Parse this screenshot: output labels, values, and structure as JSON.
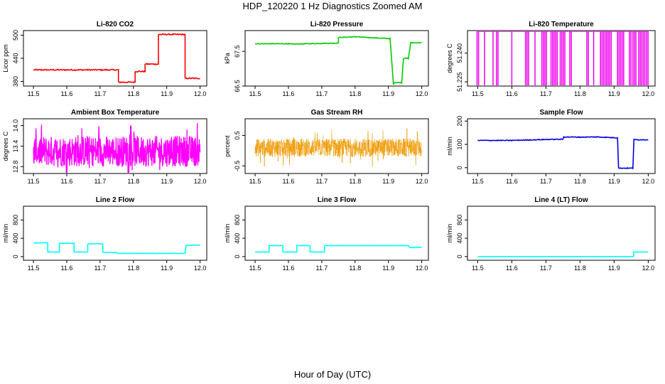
{
  "title": "HDP_120220  1 Hz Diagnostics Zoomed AM",
  "xlabel": "Hour of Day (UTC)",
  "chart_data": [
    {
      "type": "line",
      "title": "Li-820 CO2",
      "ylabel": "Licor ppm",
      "color": "#ff0000",
      "xlim": [
        11.47,
        12.02
      ],
      "ylim": [
        368,
        512
      ],
      "xticks": [
        "11.5",
        "11.6",
        "11.7",
        "11.8",
        "11.9",
        "12.0"
      ],
      "yticks": [
        "380",
        "440",
        "500"
      ],
      "noise": 1.5,
      "style": "line",
      "points": [
        [
          11.5,
          410
        ],
        [
          11.755,
          410
        ],
        [
          11.755,
          378
        ],
        [
          11.805,
          378
        ],
        [
          11.805,
          406
        ],
        [
          11.835,
          406
        ],
        [
          11.835,
          425
        ],
        [
          11.875,
          425
        ],
        [
          11.875,
          502
        ],
        [
          11.955,
          502
        ],
        [
          11.955,
          388
        ],
        [
          12.0,
          388
        ]
      ]
    },
    {
      "type": "line",
      "title": "Li-820 Pressure",
      "ylabel": "kPa",
      "color": "#00cc00",
      "xlim": [
        11.47,
        12.02
      ],
      "ylim": [
        66.5,
        68.1
      ],
      "xticks": [
        "11.5",
        "11.6",
        "11.7",
        "11.8",
        "11.9",
        "12.0"
      ],
      "yticks": [
        "66.5",
        "67.5"
      ],
      "noise": 0.01,
      "style": "line",
      "points": [
        [
          11.5,
          67.72
        ],
        [
          11.6,
          67.72
        ],
        [
          11.61,
          67.71
        ],
        [
          11.7,
          67.73
        ],
        [
          11.75,
          67.74
        ],
        [
          11.75,
          67.9
        ],
        [
          11.8,
          67.92
        ],
        [
          11.8,
          67.92
        ],
        [
          11.9,
          67.87
        ],
        [
          11.905,
          67.87
        ],
        [
          11.915,
          66.55
        ],
        [
          11.918,
          66.6
        ],
        [
          11.94,
          66.6
        ],
        [
          11.945,
          67.3
        ],
        [
          11.96,
          67.3
        ],
        [
          11.967,
          67.75
        ],
        [
          12.0,
          67.75
        ]
      ]
    },
    {
      "type": "bars",
      "title": "Li-820 Temperature",
      "ylabel": "degrees C",
      "color": "#ee00ee",
      "xlim": [
        11.47,
        12.02
      ],
      "ylim": [
        51.2228,
        51.2518
      ],
      "xticks": [
        "11.5",
        "11.6",
        "11.7",
        "11.8",
        "11.9",
        "12.0"
      ],
      "yticks": [
        "51.225",
        "51.240"
      ],
      "base": 51.2228,
      "top": 51.2518,
      "full_spans": [
        [
          11.498,
          11.503
        ],
        [
          11.52,
          11.522
        ],
        [
          11.545,
          11.548
        ],
        [
          11.555,
          11.562
        ],
        [
          11.6,
          11.604
        ],
        [
          11.64,
          11.652
        ],
        [
          11.668,
          11.672
        ],
        [
          11.688,
          11.705
        ],
        [
          11.715,
          11.735
        ],
        [
          11.742,
          11.758
        ],
        [
          11.77,
          11.776
        ],
        [
          11.82,
          11.826
        ],
        [
          11.84,
          11.842
        ],
        [
          11.86,
          11.895
        ],
        [
          11.91,
          11.93
        ],
        [
          11.945,
          11.95
        ],
        [
          11.955,
          11.965
        ],
        [
          11.972,
          11.99
        ],
        [
          11.995,
          12.0
        ]
      ],
      "step": 0.0045
    },
    {
      "type": "line",
      "title": "Ambient Box Temperature",
      "ylabel": "degrees C",
      "color": "#ff00ff",
      "xlim": [
        11.47,
        12.02
      ],
      "ylim": [
        12.6,
        14.2
      ],
      "xticks": [
        "11.5",
        "11.6",
        "11.7",
        "11.8",
        "11.9",
        "12.0"
      ],
      "yticks": [
        "12.8",
        "13.4",
        "14.0"
      ],
      "style": "random",
      "center": 13.25,
      "amp": 0.45,
      "spike": 0.85,
      "n": 600
    },
    {
      "type": "scatter",
      "title": "Gas Stream RH",
      "ylabel": "percent",
      "color": "#ee9900",
      "xlim": [
        11.47,
        12.02
      ],
      "ylim": [
        -0.75,
        1.05
      ],
      "xticks": [
        "11.5",
        "11.6",
        "11.7",
        "11.8",
        "11.9",
        "12.0"
      ],
      "yticks": [
        "-0.5",
        "0.5"
      ],
      "style": "random",
      "center": 0.1,
      "amp": 0.3,
      "spike": 0.65,
      "n": 900
    },
    {
      "type": "line",
      "title": "Sample Flow",
      "ylabel": "ml/min",
      "color": "#0000dd",
      "xlim": [
        11.47,
        12.02
      ],
      "ylim": [
        -25,
        210
      ],
      "xticks": [
        "11.5",
        "11.6",
        "11.7",
        "11.8",
        "11.9",
        "12.0"
      ],
      "yticks": [
        "0",
        "100",
        "200"
      ],
      "noise": 1.5,
      "style": "line",
      "points": [
        [
          11.5,
          117
        ],
        [
          11.6,
          117
        ],
        [
          11.65,
          119
        ],
        [
          11.7,
          121
        ],
        [
          11.75,
          122
        ],
        [
          11.752,
          132
        ],
        [
          11.8,
          131
        ],
        [
          11.85,
          132
        ],
        [
          11.91,
          128
        ],
        [
          11.913,
          -2
        ],
        [
          11.955,
          -2
        ],
        [
          11.958,
          120
        ],
        [
          12.0,
          120
        ]
      ]
    },
    {
      "type": "line",
      "title": "Line 2 Flow",
      "ylabel": "ml/min",
      "color": "#00ffff",
      "xlim": [
        11.47,
        12.02
      ],
      "ylim": [
        -80,
        1100
      ],
      "xticks": [
        "11.5",
        "11.6",
        "11.7",
        "11.8",
        "11.9",
        "12.0"
      ],
      "yticks": [
        "0",
        "400",
        "800"
      ],
      "noise": 3,
      "style": "line",
      "points": [
        [
          11.5,
          300
        ],
        [
          11.543,
          300
        ],
        [
          11.543,
          100
        ],
        [
          11.578,
          100
        ],
        [
          11.578,
          290
        ],
        [
          11.622,
          290
        ],
        [
          11.622,
          100
        ],
        [
          11.663,
          100
        ],
        [
          11.663,
          280
        ],
        [
          11.708,
          280
        ],
        [
          11.708,
          90
        ],
        [
          11.75,
          90
        ],
        [
          11.75,
          70
        ],
        [
          11.955,
          70
        ],
        [
          11.958,
          250
        ],
        [
          12.0,
          250
        ]
      ]
    },
    {
      "type": "line",
      "title": "Line 3 Flow",
      "ylabel": "ml/min",
      "color": "#00ffff",
      "xlim": [
        11.47,
        12.02
      ],
      "ylim": [
        -80,
        1100
      ],
      "xticks": [
        "11.5",
        "11.6",
        "11.7",
        "11.8",
        "11.9",
        "12.0"
      ],
      "yticks": [
        "0",
        "400",
        "800"
      ],
      "noise": 2,
      "style": "line",
      "points": [
        [
          11.5,
          100
        ],
        [
          11.542,
          100
        ],
        [
          11.542,
          240
        ],
        [
          11.583,
          240
        ],
        [
          11.583,
          100
        ],
        [
          11.625,
          100
        ],
        [
          11.625,
          240
        ],
        [
          11.665,
          240
        ],
        [
          11.665,
          100
        ],
        [
          11.708,
          100
        ],
        [
          11.708,
          240
        ],
        [
          11.96,
          240
        ],
        [
          11.963,
          200
        ],
        [
          12.0,
          200
        ]
      ]
    },
    {
      "type": "line",
      "title": "Line 4 (LT) Flow",
      "ylabel": "ml/min",
      "color": "#00ffff",
      "xlim": [
        11.47,
        12.02
      ],
      "ylim": [
        -80,
        1100
      ],
      "xticks": [
        "11.5",
        "11.6",
        "11.7",
        "11.8",
        "11.9",
        "12.0"
      ],
      "yticks": [
        "0",
        "400",
        "800"
      ],
      "noise": 0.5,
      "style": "line",
      "points": [
        [
          11.5,
          0
        ],
        [
          11.915,
          0
        ],
        [
          11.915,
          0
        ],
        [
          11.957,
          0
        ],
        [
          11.957,
          100
        ],
        [
          12.0,
          100
        ]
      ]
    }
  ]
}
